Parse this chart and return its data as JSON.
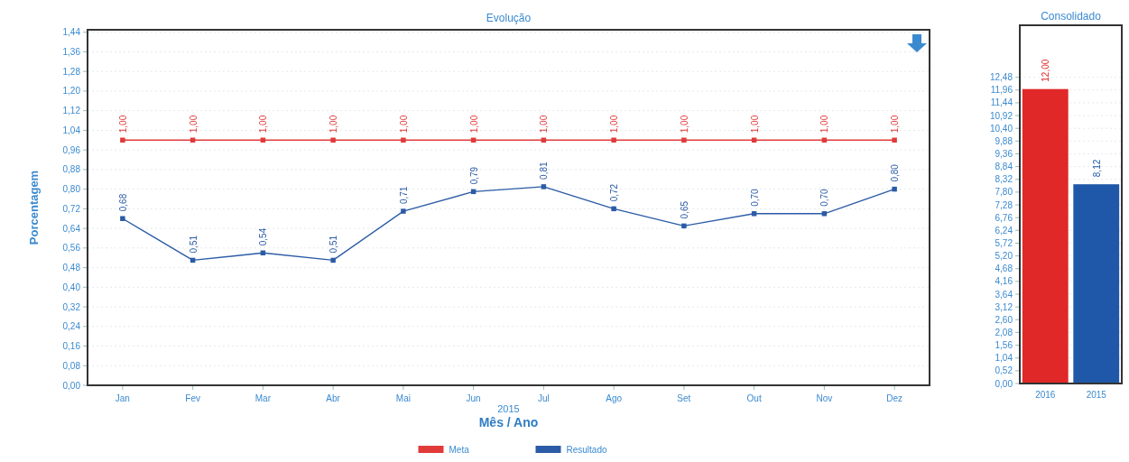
{
  "chart_data": [
    {
      "type": "line",
      "title": "Evolução",
      "xlabel": "Mês / Ano",
      "ylabel": "Porcentagem",
      "annotations": [
        "2015"
      ],
      "categories": [
        "Jan",
        "Fev",
        "Mar",
        "Abr",
        "Mai",
        "Jun",
        "Jul",
        "Ago",
        "Set",
        "Out",
        "Nov",
        "Dez"
      ],
      "series": [
        {
          "name": "Meta",
          "color": "#e03a3a",
          "values": [
            1.0,
            1.0,
            1.0,
            1.0,
            1.0,
            1.0,
            1.0,
            1.0,
            1.0,
            1.0,
            1.0,
            1.0
          ],
          "value_labels": [
            "1,00",
            "1,00",
            "1,00",
            "1,00",
            "1,00",
            "1,00",
            "1,00",
            "1,00",
            "1,00",
            "1,00",
            "1,00",
            "1,00"
          ]
        },
        {
          "name": "Resultado",
          "color": "#2b5ba6",
          "values": [
            0.68,
            0.51,
            0.54,
            0.51,
            0.71,
            0.79,
            0.81,
            0.72,
            0.65,
            0.7,
            0.7,
            0.8
          ],
          "value_labels": [
            "0,68",
            "0,51",
            "0,54",
            "0,51",
            "0,71",
            "0,79",
            "0,81",
            "0,72",
            "0,65",
            "0,70",
            "0,70",
            "0,80"
          ]
        }
      ],
      "ylim": [
        0,
        1.45
      ],
      "yticks": [
        {
          "value": 0,
          "label": "0,00"
        },
        {
          "value": 0.08,
          "label": "0,08"
        },
        {
          "value": 0.16,
          "label": "0,16"
        },
        {
          "value": 0.24,
          "label": "0,24"
        },
        {
          "value": 0.32,
          "label": "0,32"
        },
        {
          "value": 0.4,
          "label": "0,40"
        },
        {
          "value": 0.48,
          "label": "0,48"
        },
        {
          "value": 0.56,
          "label": "0,56"
        },
        {
          "value": 0.64,
          "label": "0,64"
        },
        {
          "value": 0.72,
          "label": "0,72"
        },
        {
          "value": 0.8,
          "label": "0,80"
        },
        {
          "value": 0.88,
          "label": "0,88"
        },
        {
          "value": 0.96,
          "label": "0,96"
        },
        {
          "value": 1.04,
          "label": "1,04"
        },
        {
          "value": 1.12,
          "label": "1,12"
        },
        {
          "value": 1.2,
          "label": "1,20"
        },
        {
          "value": 1.28,
          "label": "1,28"
        },
        {
          "value": 1.36,
          "label": "1,36"
        },
        {
          "value": 1.44,
          "label": "1,44"
        }
      ],
      "marker": "square",
      "grid": "y",
      "legend": "bottom"
    },
    {
      "type": "bar",
      "title": "Consolidado",
      "categories": [
        "2016",
        "2015"
      ],
      "values": [
        12.0,
        8.12
      ],
      "value_labels": [
        "12,00",
        "8,12"
      ],
      "colors": [
        "#e02828",
        "#1f58a8"
      ],
      "grid": "y",
      "ylim": [
        0,
        14.6
      ],
      "yticks": [
        {
          "value": 0,
          "label": "0,00"
        },
        {
          "value": 0.52,
          "label": "0,52"
        },
        {
          "value": 1.04,
          "label": "1,04"
        },
        {
          "value": 1.56,
          "label": "1,56"
        },
        {
          "value": 2.08,
          "label": "2,08"
        },
        {
          "value": 2.6,
          "label": "2,60"
        },
        {
          "value": 3.12,
          "label": "3,12"
        },
        {
          "value": 3.64,
          "label": "3,64"
        },
        {
          "value": 4.16,
          "label": "4,16"
        },
        {
          "value": 4.68,
          "label": "4,68"
        },
        {
          "value": 5.2,
          "label": "5,20"
        },
        {
          "value": 5.72,
          "label": "5,72"
        },
        {
          "value": 6.24,
          "label": "6,24"
        },
        {
          "value": 6.76,
          "label": "6,76"
        },
        {
          "value": 7.28,
          "label": "7,28"
        },
        {
          "value": 7.8,
          "label": "7,80"
        },
        {
          "value": 8.32,
          "label": "8,32"
        },
        {
          "value": 8.84,
          "label": "8,84"
        },
        {
          "value": 9.36,
          "label": "9,36"
        },
        {
          "value": 9.88,
          "label": "9,88"
        },
        {
          "value": 10.4,
          "label": "10,40"
        },
        {
          "value": 10.92,
          "label": "10,92"
        },
        {
          "value": 11.44,
          "label": "11,44"
        },
        {
          "value": 11.96,
          "label": "11,96"
        },
        {
          "value": 12.48,
          "label": "12,48"
        }
      ]
    }
  ]
}
